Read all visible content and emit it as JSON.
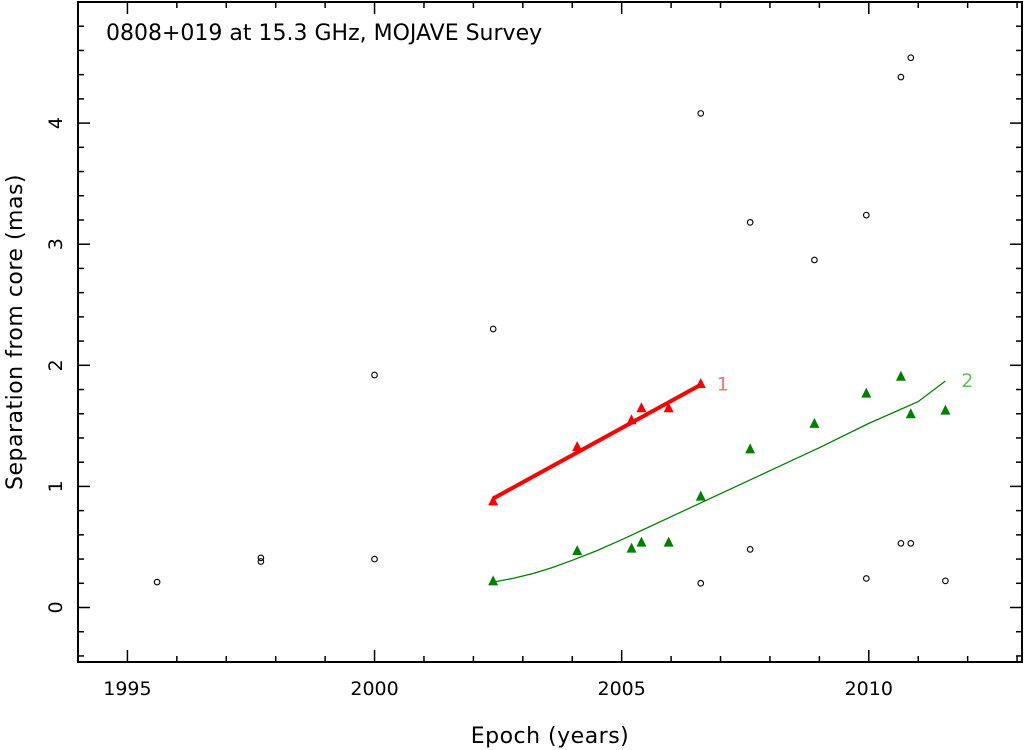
{
  "chart_data": {
    "type": "scatter",
    "title": "0808+019 at 15.3 GHz, MOJAVE Survey",
    "xlabel": "Epoch (years)",
    "ylabel": "Separation from core (mas)",
    "xlim": [
      1994.0,
      2013.1
    ],
    "ylim": [
      -0.45,
      5.0
    ],
    "x_ticks": [
      1995,
      2000,
      2005,
      2010
    ],
    "y_ticks": [
      0,
      1,
      2,
      3,
      4
    ],
    "grid": false,
    "series": [
      {
        "name": "",
        "marker": "open-circle",
        "color": "#000000",
        "points": [
          [
            1995.6,
            0.21
          ],
          [
            1997.7,
            0.38
          ],
          [
            1997.7,
            0.41
          ],
          [
            2000.0,
            1.92
          ],
          [
            2000.0,
            0.4
          ],
          [
            2002.4,
            2.3
          ],
          [
            2006.6,
            4.08
          ],
          [
            2006.6,
            0.2
          ],
          [
            2007.6,
            3.18
          ],
          [
            2007.6,
            0.48
          ],
          [
            2008.9,
            2.87
          ],
          [
            2009.95,
            3.24
          ],
          [
            2009.95,
            0.24
          ],
          [
            2010.65,
            4.38
          ],
          [
            2010.65,
            0.53
          ],
          [
            2010.85,
            4.54
          ],
          [
            2010.85,
            0.53
          ],
          [
            2011.55,
            0.22
          ]
        ]
      },
      {
        "name": "1",
        "marker": "filled-triangle",
        "color": "#ff0000",
        "points": [
          [
            2002.4,
            0.88
          ],
          [
            2004.1,
            1.33
          ],
          [
            2005.2,
            1.55
          ],
          [
            2005.4,
            1.65
          ],
          [
            2005.95,
            1.65
          ],
          [
            2006.6,
            1.85
          ]
        ],
        "fit": [
          [
            2002.4,
            0.9
          ],
          [
            2006.6,
            1.84
          ]
        ]
      },
      {
        "name": "2",
        "marker": "filled-triangle",
        "color": "#008000",
        "points": [
          [
            2002.4,
            0.22
          ],
          [
            2004.1,
            0.47
          ],
          [
            2005.2,
            0.49
          ],
          [
            2005.4,
            0.54
          ],
          [
            2005.95,
            0.54
          ],
          [
            2006.6,
            0.92
          ],
          [
            2007.6,
            1.31
          ],
          [
            2008.9,
            1.52
          ],
          [
            2009.95,
            1.77
          ],
          [
            2010.65,
            1.91
          ],
          [
            2010.85,
            1.6
          ],
          [
            2011.55,
            1.63
          ]
        ],
        "fit": [
          [
            2002.4,
            0.21
          ],
          [
            2002.8,
            0.24
          ],
          [
            2003.2,
            0.28
          ],
          [
            2003.6,
            0.33
          ],
          [
            2004.0,
            0.39
          ],
          [
            2004.5,
            0.47
          ],
          [
            2005.0,
            0.56
          ],
          [
            2006.0,
            0.75
          ],
          [
            2007.0,
            0.94
          ],
          [
            2008.0,
            1.13
          ],
          [
            2009.0,
            1.32
          ],
          [
            2010.0,
            1.52
          ],
          [
            2011.0,
            1.7
          ],
          [
            2011.55,
            1.87
          ]
        ]
      }
    ]
  }
}
